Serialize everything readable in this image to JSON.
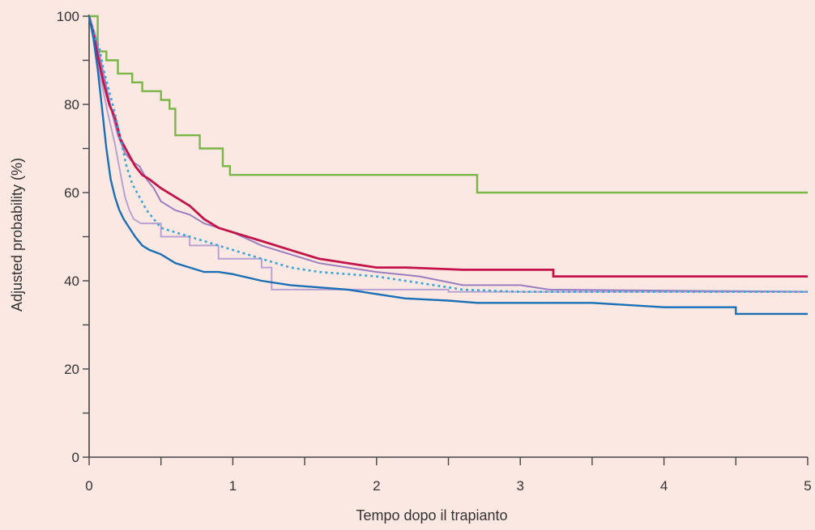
{
  "chart_data": {
    "type": "line",
    "xlabel": "Tempo dopo il trapianto",
    "ylabel": "Adjusted probability (%)",
    "xlim": [
      0,
      5
    ],
    "ylim": [
      0,
      100
    ],
    "x_ticks": [
      0,
      0.5,
      1,
      1.5,
      2,
      2.5,
      3,
      3.5,
      4,
      4.5,
      5
    ],
    "x_tick_labels": [
      "0",
      "",
      "1",
      "",
      "2",
      "",
      "3",
      "",
      "4",
      "",
      "5"
    ],
    "y_ticks": [
      0,
      10,
      20,
      30,
      40,
      50,
      60,
      70,
      80,
      90,
      100
    ],
    "y_tick_labels": [
      "0",
      "",
      "20",
      "",
      "40",
      "",
      "60",
      "",
      "80",
      "",
      "100"
    ],
    "grid": false,
    "series": [
      {
        "color": "#7ab547",
        "style": "solid",
        "stroke": 2.4,
        "x": [
          0,
          0.06,
          0.06,
          0.12,
          0.12,
          0.2,
          0.2,
          0.3,
          0.3,
          0.37,
          0.37,
          0.5,
          0.5,
          0.56,
          0.56,
          0.6,
          0.6,
          0.77,
          0.77,
          0.93,
          0.93,
          0.98,
          0.98,
          2.7,
          2.7,
          5
        ],
        "y": [
          100,
          100,
          92,
          92,
          90,
          90,
          87,
          87,
          85,
          85,
          83,
          83,
          81,
          81,
          79,
          79,
          73,
          73,
          70,
          70,
          66,
          66,
          64,
          64,
          60,
          60
        ]
      },
      {
        "color": "#b8a2d2",
        "style": "solid",
        "stroke": 2.0,
        "x": [
          0,
          0.04,
          0.08,
          0.13,
          0.18,
          0.22,
          0.25,
          0.28,
          0.31,
          0.36,
          0.45,
          0.5,
          0.5,
          0.7,
          0.7,
          0.9,
          0.9,
          1.2,
          1.2,
          1.27,
          1.27,
          2.5,
          2.5,
          5
        ],
        "y": [
          100,
          94,
          86,
          78,
          71,
          64,
          59,
          56,
          54,
          53,
          53,
          53,
          50,
          50,
          48,
          48,
          45,
          45,
          43,
          43,
          38,
          38,
          37.5,
          37.5
        ]
      },
      {
        "color": "#9b7ec0",
        "style": "solid",
        "stroke": 2.0,
        "x": [
          0,
          0.04,
          0.08,
          0.12,
          0.16,
          0.2,
          0.25,
          0.3,
          0.35,
          0.4,
          0.45,
          0.5,
          0.6,
          0.7,
          0.8,
          0.9,
          1.0,
          1.2,
          1.4,
          1.6,
          1.8,
          2.0,
          2.3,
          2.6,
          3.0,
          3.2,
          5
        ],
        "y": [
          100,
          96,
          90,
          84,
          78,
          73,
          69,
          67,
          66,
          63,
          61,
          58,
          56,
          55,
          53,
          52,
          51,
          48,
          46,
          44,
          43,
          42,
          41,
          39,
          39,
          38,
          37.5
        ]
      },
      {
        "color": "#c3134a",
        "style": "solid",
        "stroke": 2.8,
        "x": [
          0,
          0.03,
          0.06,
          0.1,
          0.14,
          0.18,
          0.22,
          0.27,
          0.32,
          0.37,
          0.42,
          0.5,
          0.6,
          0.7,
          0.8,
          0.9,
          1.0,
          1.2,
          1.4,
          1.6,
          1.8,
          2.0,
          2.2,
          2.6,
          3.0,
          3.23,
          3.23,
          5
        ],
        "y": [
          100,
          96,
          91,
          85,
          80,
          77,
          72,
          69,
          66,
          64,
          63,
          61,
          59,
          57,
          54,
          52,
          51,
          49,
          47,
          45,
          44,
          43,
          43,
          42.5,
          42.5,
          42.5,
          41,
          41
        ]
      },
      {
        "color": "#3aa7d8",
        "style": "dotted",
        "stroke": 2.6,
        "x": [
          0,
          0.03,
          0.07,
          0.1,
          0.14,
          0.18,
          0.22,
          0.26,
          0.3,
          0.35,
          0.4,
          0.45,
          0.5,
          0.6,
          0.7,
          0.8,
          0.9,
          1.0,
          1.2,
          1.4,
          1.6,
          1.8,
          2.0,
          2.2,
          2.4,
          2.6,
          3.0,
          5
        ],
        "y": [
          100,
          96,
          93,
          88,
          83,
          78,
          72,
          66,
          62,
          59,
          56,
          54,
          52,
          51,
          50,
          49,
          48,
          47,
          45,
          43,
          42,
          41.5,
          41,
          40,
          39,
          38,
          37.5,
          37.5
        ]
      },
      {
        "color": "#1b6fb6",
        "style": "solid",
        "stroke": 2.4,
        "x": [
          0,
          0.03,
          0.06,
          0.09,
          0.12,
          0.15,
          0.18,
          0.21,
          0.24,
          0.28,
          0.32,
          0.37,
          0.42,
          0.5,
          0.6,
          0.7,
          0.8,
          0.9,
          1.0,
          1.2,
          1.4,
          1.6,
          1.8,
          2.0,
          2.2,
          2.5,
          2.7,
          3.0,
          3.5,
          4.0,
          4.5,
          4.5,
          5
        ],
        "y": [
          100,
          95,
          88,
          79,
          70,
          63,
          59,
          56,
          54,
          52,
          50,
          48,
          47,
          46,
          44,
          43,
          42,
          42,
          41.5,
          40,
          39,
          38.5,
          38,
          37,
          36,
          35.5,
          35,
          35,
          35,
          34,
          34,
          32.5,
          32.5
        ]
      }
    ]
  }
}
